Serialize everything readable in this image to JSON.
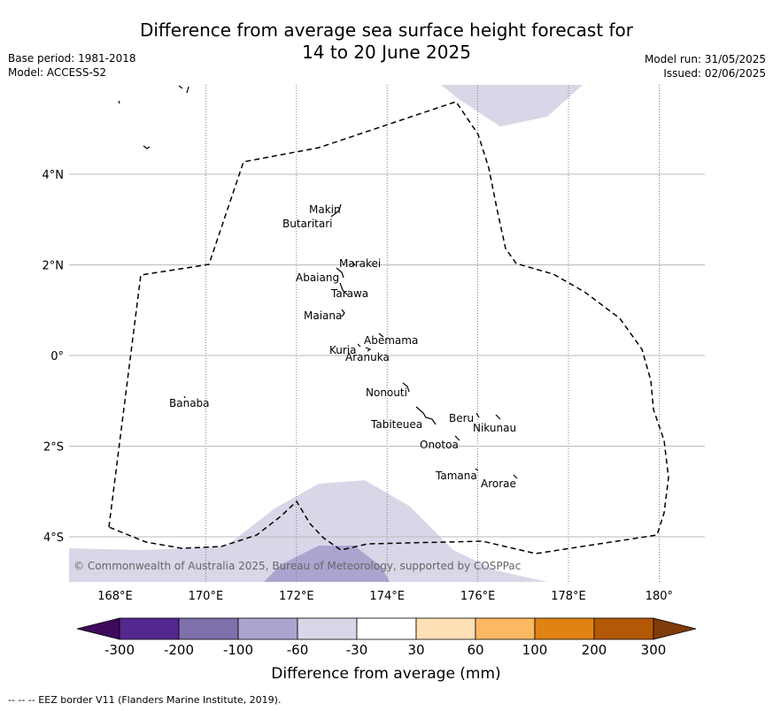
{
  "title_line1": "Difference from average sea surface height forecast for",
  "title_line2": "14 to 20 June 2025",
  "base_period": "Base period: 1981-2018",
  "model": "Model: ACCESS-S2",
  "model_run": "Model run: 31/05/2025",
  "issued": "Issued: 02/06/2025",
  "x_ticks": [
    "168°E",
    "170°E",
    "172°E",
    "174°E",
    "176°E",
    "178°E",
    "180°"
  ],
  "y_ticks": [
    "4°N",
    "2°N",
    "0°",
    "2°S",
    "4°S"
  ],
  "places": [
    {
      "name": "Makin",
      "lon": 172.9,
      "lat": 3.2
    },
    {
      "name": "Butaritari",
      "lon": 172.8,
      "lat": 3.0
    },
    {
      "name": "Marakei",
      "lon": 173.3,
      "lat": 2.0
    },
    {
      "name": "Abaiang",
      "lon": 172.9,
      "lat": 1.8
    },
    {
      "name": "Tarawa",
      "lon": 173.0,
      "lat": 1.4
    },
    {
      "name": "Maiana",
      "lon": 173.0,
      "lat": 0.9
    },
    {
      "name": "Abemama",
      "lon": 173.9,
      "lat": 0.4
    },
    {
      "name": "Kuria",
      "lon": 173.4,
      "lat": 0.2
    },
    {
      "name": "Aranuka",
      "lon": 173.6,
      "lat": 0.2
    },
    {
      "name": "Nonouti",
      "lon": 174.4,
      "lat": -0.7
    },
    {
      "name": "Banaba",
      "lon": 169.5,
      "lat": -0.9
    },
    {
      "name": "Tabiteuea",
      "lon": 174.8,
      "lat": -1.3
    },
    {
      "name": "Beru",
      "lon": 176.0,
      "lat": -1.3
    },
    {
      "name": "Nikunau",
      "lon": 176.4,
      "lat": -1.4
    },
    {
      "name": "Onotoa",
      "lon": 175.6,
      "lat": -1.8
    },
    {
      "name": "Tamana",
      "lon": 176.0,
      "lat": -2.5
    },
    {
      "name": "Arorae",
      "lon": 176.8,
      "lat": -2.7
    }
  ],
  "colorbar": {
    "labels": [
      "-300",
      "-200",
      "-100",
      "-60",
      "-30",
      "30",
      "60",
      "100",
      "200",
      "300"
    ],
    "colors": [
      "#3f0a5c",
      "#54278f",
      "#7e70ab",
      "#aca4cf",
      "#d7d7e8",
      "#ffffff",
      "#fee0b6",
      "#fdb863",
      "#e08214",
      "#b35806",
      "#7f3b08"
    ],
    "label": "Difference from average (mm)"
  },
  "copyright": "© Commonwealth of Australia 2025, Bureau of Meteorology, supported by COSPPac",
  "footer": "-- -- -- EEZ border V11 (Flanders Marine Institute, 2019)."
}
